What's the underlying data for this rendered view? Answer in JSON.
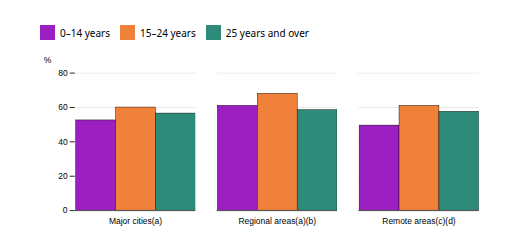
{
  "chart_data": {
    "type": "bar",
    "categories": [
      "Major cities(a)",
      "Regional areas(a)(b)",
      "Remote areas(c)(d)"
    ],
    "series": [
      {
        "name": "0–14 years",
        "color": "#9B1FC1",
        "values": [
          52.5,
          61.0,
          49.5
        ]
      },
      {
        "name": "15–24 years",
        "color": "#F0813A",
        "values": [
          60.0,
          68.0,
          61.0
        ]
      },
      {
        "name": "25 years and over",
        "color": "#2E8B7A",
        "values": [
          56.5,
          58.5,
          57.5
        ]
      }
    ],
    "ylabel": "%",
    "ylim": [
      0,
      80
    ],
    "yticks": [
      0,
      20,
      40,
      60,
      80
    ],
    "grid": true,
    "legend": "upper left"
  }
}
